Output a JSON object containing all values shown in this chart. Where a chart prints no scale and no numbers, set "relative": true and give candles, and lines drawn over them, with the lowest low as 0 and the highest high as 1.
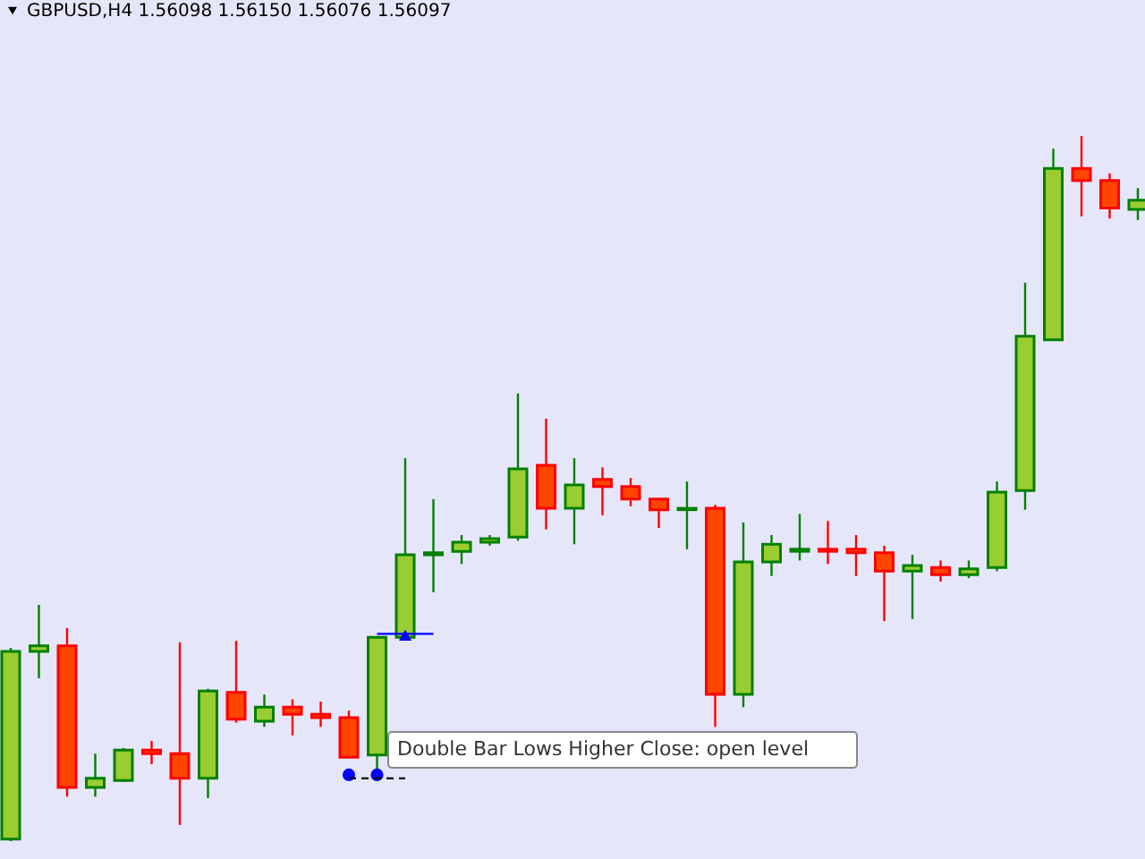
{
  "chart_data": {
    "type": "candlestick",
    "relative": true,
    "title": "GBPUSD,H4  1.56098 1.56150 1.56076 1.56097",
    "annotations": [
      "Double Bar Lows  Higher Close: open level"
    ],
    "categories": [
      null,
      null,
      null,
      null,
      null,
      null,
      null,
      null,
      null,
      null,
      null,
      null,
      null,
      null,
      null,
      null,
      null,
      null,
      null,
      null,
      null,
      null,
      null,
      null,
      null,
      null,
      null,
      null,
      null,
      null,
      null,
      null,
      null,
      null,
      null,
      null,
      null,
      null,
      null,
      null,
      null
    ],
    "ohlc": [
      [
        0.003,
        0.274,
        0,
        0.269
      ],
      [
        0.269,
        0.335,
        0.231,
        0.277
      ],
      [
        0.277,
        0.302,
        0.063,
        0.076
      ],
      [
        0.076,
        0.124,
        0.063,
        0.089
      ],
      [
        0.086,
        0.132,
        0.084,
        0.129
      ],
      [
        0.129,
        0.142,
        0.109,
        0.124
      ],
      [
        0.124,
        0.282,
        0.023,
        0.089
      ],
      [
        0.089,
        0.216,
        0.061,
        0.213
      ],
      [
        0.211,
        0.284,
        0.168,
        0.173
      ],
      [
        0.17,
        0.208,
        0.162,
        0.19
      ],
      [
        0.19,
        0.201,
        0.15,
        0.18
      ],
      [
        0.18,
        0.198,
        0.162,
        0.175
      ],
      [
        0.175,
        0.185,
        0.117,
        0.119
      ],
      [
        0.122,
        0.289,
        0.102,
        0.289
      ],
      [
        0.289,
        0.543,
        0.289,
        0.406
      ],
      [
        0.406,
        0.485,
        0.353,
        0.409
      ],
      [
        0.411,
        0.434,
        0.393,
        0.424
      ],
      [
        0.424,
        0.434,
        0.419,
        0.429
      ],
      [
        0.431,
        0.635,
        0.426,
        0.528
      ],
      [
        0.533,
        0.599,
        0.442,
        0.472
      ],
      [
        0.472,
        0.543,
        0.421,
        0.505
      ],
      [
        0.513,
        0.53,
        0.462,
        0.503
      ],
      [
        0.503,
        0.515,
        0.475,
        0.485
      ],
      [
        0.485,
        0.485,
        0.444,
        0.47
      ],
      [
        0.47,
        0.51,
        0.414,
        0.472
      ],
      [
        0.472,
        0.477,
        0.162,
        0.208
      ],
      [
        0.208,
        0.452,
        0.19,
        0.396
      ],
      [
        0.396,
        0.434,
        0.376,
        0.421
      ],
      [
        0.411,
        0.464,
        0.398,
        0.414
      ],
      [
        0.414,
        0.454,
        0.393,
        0.411
      ],
      [
        0.414,
        0.434,
        0.376,
        0.409
      ],
      [
        0.409,
        0.419,
        0.312,
        0.383
      ],
      [
        0.383,
        0.406,
        0.315,
        0.391
      ],
      [
        0.388,
        0.398,
        0.368,
        0.378
      ],
      [
        0.378,
        0.398,
        0.373,
        0.386
      ],
      [
        0.388,
        0.51,
        0.383,
        0.495
      ],
      [
        0.497,
        0.792,
        0.47,
        0.716
      ],
      [
        0.711,
        0.982,
        0.711,
        0.954
      ],
      [
        0.954,
        1.0,
        0.886,
        0.937
      ],
      [
        0.937,
        0.947,
        0.883,
        0.898
      ],
      [
        0.896,
        0.926,
        0.881,
        0.909
      ]
    ],
    "colors": [
      "#9acd32",
      "#9acd32",
      "#ff4500",
      "#9acd32",
      "#9acd32",
      "#ff4500",
      "#ff4500",
      "#9acd32",
      "#ff4500",
      "#9acd32",
      "#ff4500",
      "#ff4500",
      "#ff4500",
      "#9acd32",
      "#9acd32",
      "#9acd32",
      "#9acd32",
      "#9acd32",
      "#9acd32",
      "#ff4500",
      "#9acd32",
      "#ff4500",
      "#ff4500",
      "#ff4500",
      "#9acd32",
      "#ff4500",
      "#9acd32",
      "#9acd32",
      "#9acd32",
      "#ff4500",
      "#ff4500",
      "#ff4500",
      "#9acd32",
      "#ff4500",
      "#9acd32",
      "#9acd32",
      "#9acd32",
      "#9acd32",
      "#ff4500",
      "#ff4500",
      "#9acd32"
    ],
    "series": [
      {
        "type": "scatter",
        "marker": "circle",
        "color": "#0000ff",
        "values": [
          null,
          null,
          null,
          null,
          null,
          null,
          null,
          null,
          null,
          null,
          null,
          null,
          0.094,
          0.094,
          null,
          null,
          null,
          null,
          null,
          null,
          null,
          null,
          null,
          null,
          null,
          null,
          null,
          null,
          null,
          null,
          null,
          null,
          null,
          null,
          null,
          null,
          null,
          null,
          null,
          null,
          null
        ]
      },
      {
        "type": "scatter",
        "marker": "triangle",
        "color": "#0000ff",
        "values": [
          null,
          null,
          null,
          null,
          null,
          null,
          null,
          null,
          null,
          null,
          null,
          null,
          null,
          null,
          0.292,
          null,
          null,
          null,
          null,
          null,
          null,
          null,
          null,
          null,
          null,
          null,
          null,
          null,
          null,
          null,
          null,
          null,
          null,
          null,
          null,
          null,
          null,
          null,
          null,
          null,
          null
        ]
      },
      {
        "type": "line",
        "line_style": "dashed",
        "color": "#000000",
        "values": [
          null,
          null,
          null,
          null,
          null,
          null,
          null,
          null,
          null,
          null,
          null,
          null,
          0.089,
          0.089,
          0.089,
          null,
          null,
          null,
          null,
          null,
          null,
          null,
          null,
          null,
          null,
          null,
          null,
          null,
          null,
          null,
          null,
          null,
          null,
          null,
          null,
          null,
          null,
          null,
          null,
          null,
          null
        ]
      },
      {
        "type": "line",
        "line_style": "solid",
        "color": "#0000ff",
        "values": [
          null,
          null,
          null,
          null,
          null,
          null,
          null,
          null,
          null,
          null,
          null,
          null,
          null,
          0.294,
          0.294,
          0.294,
          null,
          null,
          null,
          null,
          null,
          null,
          null,
          null,
          null,
          null,
          null,
          null,
          null,
          null,
          null,
          null,
          null,
          null,
          null,
          null,
          null,
          null,
          null,
          null,
          null
        ]
      }
    ]
  }
}
